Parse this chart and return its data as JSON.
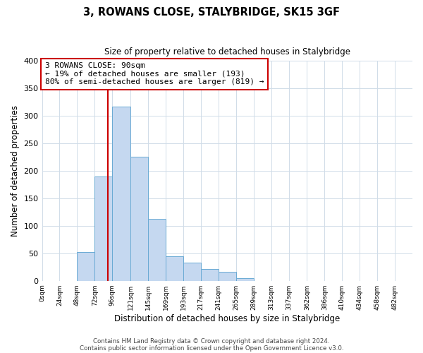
{
  "title1": "3, ROWANS CLOSE, STALYBRIDGE, SK15 3GF",
  "title2": "Size of property relative to detached houses in Stalybridge",
  "xlabel": "Distribution of detached houses by size in Stalybridge",
  "ylabel": "Number of detached properties",
  "footer1": "Contains HM Land Registry data © Crown copyright and database right 2024.",
  "footer2": "Contains public sector information licensed under the Open Government Licence v3.0.",
  "bin_labels": [
    "0sqm",
    "24sqm",
    "48sqm",
    "72sqm",
    "96sqm",
    "121sqm",
    "145sqm",
    "169sqm",
    "193sqm",
    "217sqm",
    "241sqm",
    "265sqm",
    "289sqm",
    "313sqm",
    "337sqm",
    "362sqm",
    "386sqm",
    "410sqm",
    "434sqm",
    "458sqm",
    "482sqm"
  ],
  "bin_edges": [
    0,
    24,
    48,
    72,
    96,
    121,
    145,
    169,
    193,
    217,
    241,
    265,
    289,
    313,
    337,
    362,
    386,
    410,
    434,
    458,
    482,
    506
  ],
  "bar_heights": [
    0,
    0,
    52,
    190,
    316,
    225,
    113,
    45,
    33,
    21,
    16,
    5,
    0,
    0,
    0,
    0,
    0,
    0,
    0,
    0,
    0
  ],
  "bar_color": "#c5d8f0",
  "bar_edge_color": "#6aaad4",
  "vline_x": 90,
  "vline_color": "#cc0000",
  "annotation_title": "3 ROWANS CLOSE: 90sqm",
  "annotation_line1": "← 19% of detached houses are smaller (193)",
  "annotation_line2": "80% of semi-detached houses are larger (819) →",
  "annotation_box_color": "#cc0000",
  "ylim": [
    0,
    400
  ],
  "yticks": [
    0,
    50,
    100,
    150,
    200,
    250,
    300,
    350,
    400
  ],
  "background_color": "#ffffff",
  "grid_color": "#d0dce8"
}
